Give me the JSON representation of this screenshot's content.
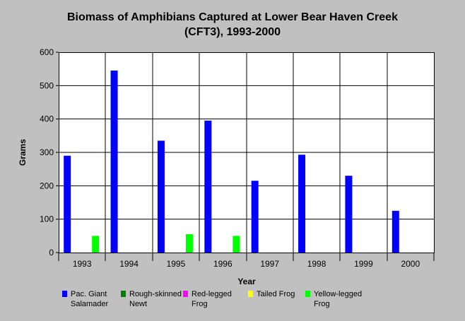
{
  "chart_data": {
    "type": "bar",
    "title": [
      "Biomass of Amphibians Captured at Lower Bear Haven Creek",
      "(CFT3), 1993-2000"
    ],
    "xlabel": "Year",
    "ylabel": "Grams",
    "ylim": [
      0,
      600
    ],
    "yticks": [
      0,
      100,
      200,
      300,
      400,
      500,
      600
    ],
    "grid": true,
    "legend_position": "bottom",
    "categories": [
      "1993",
      "1994",
      "1995",
      "1996",
      "1997",
      "1998",
      "1999",
      "2000"
    ],
    "series": [
      {
        "name": "Pac. Giant Salamader",
        "color": "#0000ff",
        "values": [
          290,
          545,
          335,
          395,
          215,
          293,
          230,
          125
        ]
      },
      {
        "name": "Rough-skinned Newt",
        "color": "#008000",
        "values": [
          0,
          0,
          0,
          0,
          0,
          0,
          0,
          0
        ]
      },
      {
        "name": "Red-legged Frog",
        "color": "#ff00ff",
        "values": [
          0,
          0,
          0,
          0,
          0,
          0,
          0,
          0
        ]
      },
      {
        "name": "Tailed Frog",
        "color": "#ffff00",
        "values": [
          0,
          0,
          0,
          0,
          0,
          0,
          0,
          0
        ]
      },
      {
        "name": "Yellow-legged Frog",
        "color": "#00ff00",
        "values": [
          50,
          0,
          55,
          50,
          0,
          0,
          0,
          0
        ]
      }
    ],
    "legend": [
      {
        "line1": "Pac. Giant",
        "line2": "Salamader",
        "color": "#0000ff"
      },
      {
        "line1": "Rough-skinned",
        "line2": "Newt",
        "color": "#008000"
      },
      {
        "line1": "Red-legged",
        "line2": "Frog",
        "color": "#ff00ff"
      },
      {
        "line1": "Tailed Frog",
        "line2": "",
        "color": "#ffff00"
      },
      {
        "line1": "Yellow-legged",
        "line2": "Frog",
        "color": "#00ff00"
      }
    ]
  }
}
